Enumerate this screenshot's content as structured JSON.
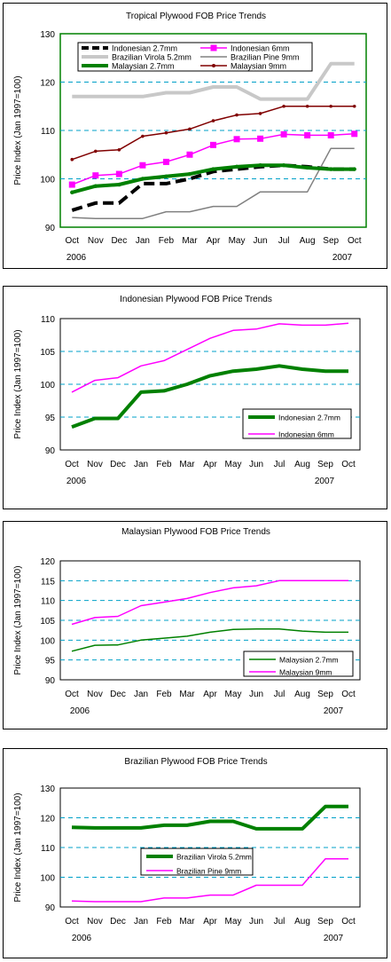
{
  "chart_data": [
    {
      "type": "line",
      "title": "Tropical Plywood FOB Price Trends",
      "ylabel": "Price Index (Jan 1997=100)",
      "categories": [
        "Oct",
        "Nov",
        "Dec",
        "Jan",
        "Feb",
        "Mar",
        "Apr",
        "May",
        "Jun",
        "Jul",
        "Aug",
        "Sep",
        "Oct"
      ],
      "year_labels": [
        "2006",
        "2007"
      ],
      "ylim": [
        90,
        130
      ],
      "yticks": [
        "90",
        "100",
        "110",
        "120",
        "130"
      ],
      "grid": "dashed horizontal",
      "legend_position": "top",
      "series": [
        {
          "name": "Indonesian 2.7mm",
          "color": "#000000",
          "style": "dashed-thick",
          "values": [
            93.5,
            95,
            95,
            99,
            99,
            100,
            101.5,
            102,
            102.5,
            102.8,
            102.5,
            102,
            102
          ]
        },
        {
          "name": "Indonesian 6mm",
          "color": "#ff00ff",
          "style": "square-markers",
          "values": [
            98.8,
            100.7,
            101,
            102.8,
            103.5,
            105,
            107,
            108.2,
            108.3,
            109.2,
            109,
            109,
            109.3
          ]
        },
        {
          "name": "Brazilian Virola 5.2mm",
          "color": "#c8c8c8",
          "style": "thick",
          "values": [
            117,
            117,
            117,
            117,
            117.8,
            117.8,
            119,
            119,
            116.5,
            116.5,
            116.5,
            123.8,
            123.8
          ]
        },
        {
          "name": "Brazilian Pine 9mm",
          "color": "#808080",
          "style": "solid",
          "values": [
            92,
            91.8,
            91.8,
            91.8,
            93.2,
            93.2,
            94.3,
            94.3,
            97.3,
            97.3,
            97.3,
            106.3,
            106.3
          ]
        },
        {
          "name": "Malaysian 2.7mm",
          "color": "#008000",
          "style": "thick-dots",
          "values": [
            97.2,
            98.5,
            98.8,
            100,
            100.5,
            101,
            102,
            102.5,
            102.8,
            102.8,
            102.3,
            102,
            102
          ]
        },
        {
          "name": "Malaysian 9mm",
          "color": "#800000",
          "style": "dots",
          "values": [
            104,
            105.7,
            106,
            108.8,
            109.5,
            110.3,
            112,
            113.2,
            113.5,
            115,
            115,
            115,
            115
          ]
        }
      ]
    },
    {
      "type": "line",
      "title": "Indonesian Plywood FOB Price Trends",
      "ylabel": "Price Index (Jan 1997=100)",
      "categories": [
        "Oct",
        "Nov",
        "Dec",
        "Jan",
        "Feb",
        "Mar",
        "Apr",
        "May",
        "Jun",
        "Jul",
        "Aug",
        "Sep",
        "Oct"
      ],
      "year_labels": [
        "2006",
        "2007"
      ],
      "ylim": [
        90,
        110
      ],
      "yticks": [
        "90",
        "95",
        "100",
        "105",
        "110"
      ],
      "grid": "dashed horizontal",
      "legend_position": "bottom-right",
      "series": [
        {
          "name": "Indonesian 2.7mm",
          "color": "#008000",
          "style": "thick",
          "values": [
            93.5,
            94.8,
            94.8,
            98.8,
            99,
            100,
            101.3,
            102,
            102.3,
            102.8,
            102.3,
            102,
            102
          ]
        },
        {
          "name": "Indonesian 6mm",
          "color": "#ff00ff",
          "style": "solid",
          "values": [
            98.8,
            100.6,
            101,
            102.8,
            103.6,
            105.3,
            107,
            108.2,
            108.4,
            109.2,
            109,
            109,
            109.3
          ]
        }
      ]
    },
    {
      "type": "line",
      "title": "Malaysian Plywood FOB Price Trends",
      "ylabel": "Price Index (Jan 1997=100)",
      "categories": [
        "Oct",
        "Nov",
        "Dec",
        "Jan",
        "Feb",
        "Mar",
        "Apr",
        "May",
        "Jun",
        "Jul",
        "Aug",
        "Sep",
        "Oct"
      ],
      "year_labels": [
        "2006",
        "2007"
      ],
      "ylim": [
        90,
        120
      ],
      "yticks": [
        "90",
        "95",
        "100",
        "105",
        "110",
        "115",
        "120"
      ],
      "grid": "dashed horizontal",
      "legend_position": "bottom-right",
      "series": [
        {
          "name": "Malaysian 2.7mm",
          "color": "#008000",
          "style": "solid",
          "values": [
            97.2,
            98.7,
            98.8,
            100,
            100.5,
            101,
            102,
            102.7,
            102.8,
            102.8,
            102.3,
            102,
            102
          ]
        },
        {
          "name": "Malaysian 9mm",
          "color": "#ff00ff",
          "style": "solid",
          "values": [
            104,
            105.7,
            106,
            108.7,
            109.6,
            110.5,
            112,
            113.2,
            113.7,
            115,
            115,
            115,
            115
          ]
        }
      ]
    },
    {
      "type": "line",
      "title": "Brazilian Plywood FOB Price Trends",
      "ylabel": "Price Index (Jan 1997=100)",
      "categories": [
        "Oct",
        "Nov",
        "Dec",
        "Jan",
        "Feb",
        "Mar",
        "Apr",
        "May",
        "Jun",
        "Jul",
        "Aug",
        "Sep",
        "Oct"
      ],
      "year_labels": [
        "2006",
        "2007"
      ],
      "ylim": [
        90,
        130
      ],
      "yticks": [
        "90",
        "100",
        "110",
        "120",
        "130"
      ],
      "grid": "dashed horizontal",
      "legend_position": "center",
      "series": [
        {
          "name": "Brazilian Virola 5.2mm",
          "color": "#008000",
          "style": "thick",
          "values": [
            116.8,
            116.6,
            116.6,
            116.6,
            117.5,
            117.5,
            118.8,
            118.8,
            116.3,
            116.3,
            116.3,
            123.8,
            123.8
          ]
        },
        {
          "name": "Brazilian Pine 9mm",
          "color": "#ff00ff",
          "style": "solid",
          "values": [
            92,
            91.8,
            91.8,
            91.8,
            93,
            93,
            94,
            94,
            97.3,
            97.3,
            97.3,
            106.2,
            106.2
          ]
        }
      ]
    }
  ]
}
